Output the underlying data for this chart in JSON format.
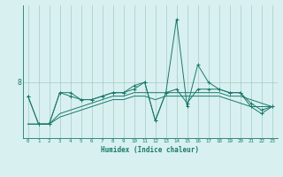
{
  "x": [
    0,
    1,
    2,
    3,
    4,
    5,
    6,
    7,
    8,
    9,
    10,
    11,
    12,
    13,
    14,
    15,
    16,
    17,
    18,
    19,
    20,
    21,
    22,
    23
  ],
  "line1": [
    7.6,
    6.8,
    6.8,
    7.7,
    7.7,
    7.5,
    7.5,
    7.6,
    7.7,
    7.7,
    7.9,
    8.0,
    6.9,
    7.7,
    9.8,
    7.3,
    8.5,
    8.0,
    7.8,
    7.7,
    7.7,
    7.4,
    7.2,
    7.3
  ],
  "line2": [
    7.6,
    6.8,
    6.8,
    7.7,
    7.6,
    7.5,
    7.5,
    7.6,
    7.7,
    7.7,
    7.8,
    8.0,
    6.9,
    7.7,
    7.8,
    7.4,
    7.8,
    7.8,
    7.8,
    7.7,
    7.7,
    7.3,
    7.1,
    7.3
  ],
  "line3": [
    6.8,
    6.8,
    6.8,
    7.1,
    7.2,
    7.3,
    7.4,
    7.5,
    7.6,
    7.6,
    7.7,
    7.7,
    7.7,
    7.7,
    7.7,
    7.7,
    7.7,
    7.7,
    7.7,
    7.6,
    7.6,
    7.5,
    7.4,
    7.3
  ],
  "line4": [
    6.8,
    6.8,
    6.8,
    7.0,
    7.1,
    7.2,
    7.3,
    7.4,
    7.5,
    7.5,
    7.6,
    7.6,
    7.5,
    7.6,
    7.6,
    7.6,
    7.6,
    7.6,
    7.6,
    7.5,
    7.4,
    7.3,
    7.3,
    7.3
  ],
  "color": "#1a7a6a",
  "bg_color": "#d8f0f0",
  "grid_color": "#a8c8c8",
  "xlabel": "Humidex (Indice chaleur)",
  "ytick_label": "8",
  "ytick_val": 8.0,
  "xlim": [
    -0.5,
    23.5
  ],
  "ylim": [
    6.4,
    10.2
  ]
}
